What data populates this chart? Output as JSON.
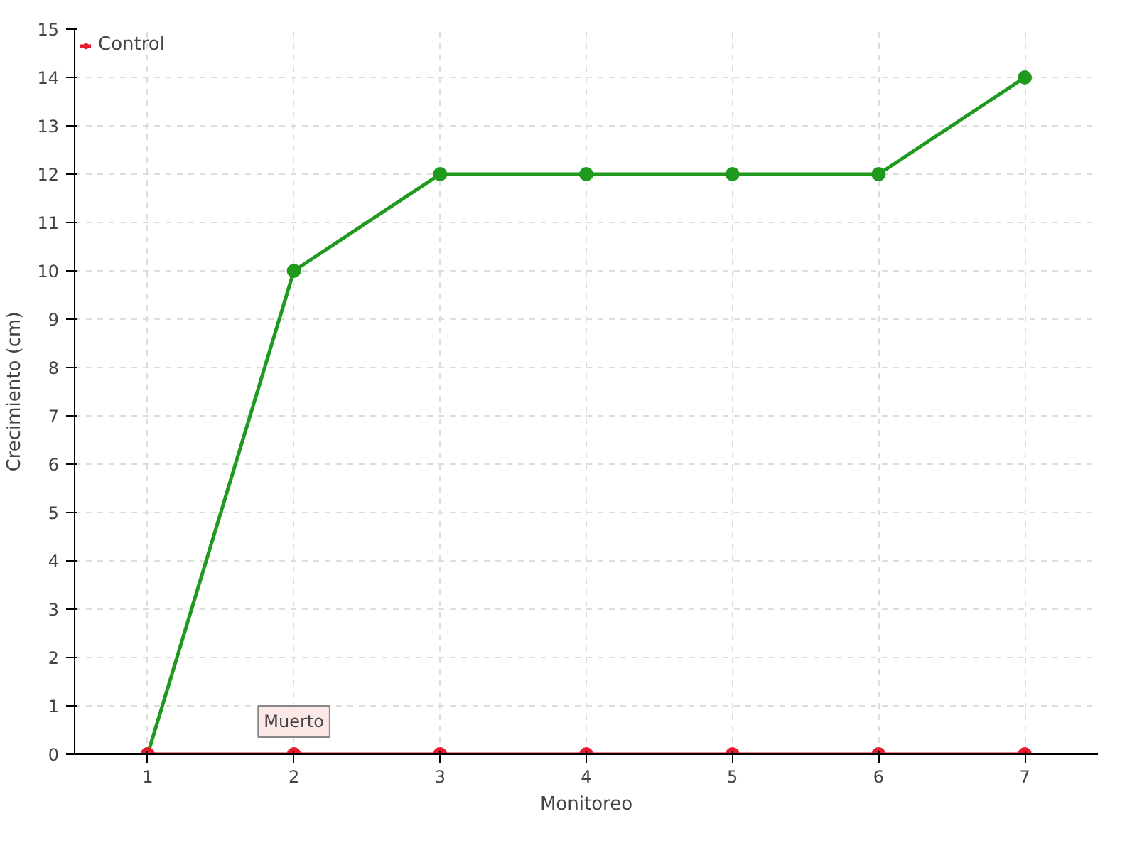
{
  "chart_data": {
    "type": "line",
    "xlabel": "Monitoreo",
    "ylabel": "Crecimiento (cm)",
    "categories": [
      "1",
      "2",
      "3",
      "4",
      "5",
      "6",
      "7"
    ],
    "series": [
      {
        "color": "#1f9a1f",
        "values": [
          0,
          10,
          12,
          12,
          12,
          12,
          14
        ]
      },
      {
        "name": "Control",
        "color": "#e8192c",
        "values": [
          0,
          0,
          0,
          0,
          0,
          0,
          0
        ]
      }
    ],
    "ylim": [
      0,
      15
    ],
    "yticks": [
      0,
      1,
      2,
      3,
      4,
      5,
      6,
      7,
      8,
      9,
      10,
      11,
      12,
      13,
      14,
      15
    ],
    "grid": true,
    "legend": "top left",
    "marker": "circle",
    "line_style": "solid",
    "annotations": [
      {
        "text": "Muerto",
        "x": "2",
        "y": 0
      }
    ]
  }
}
